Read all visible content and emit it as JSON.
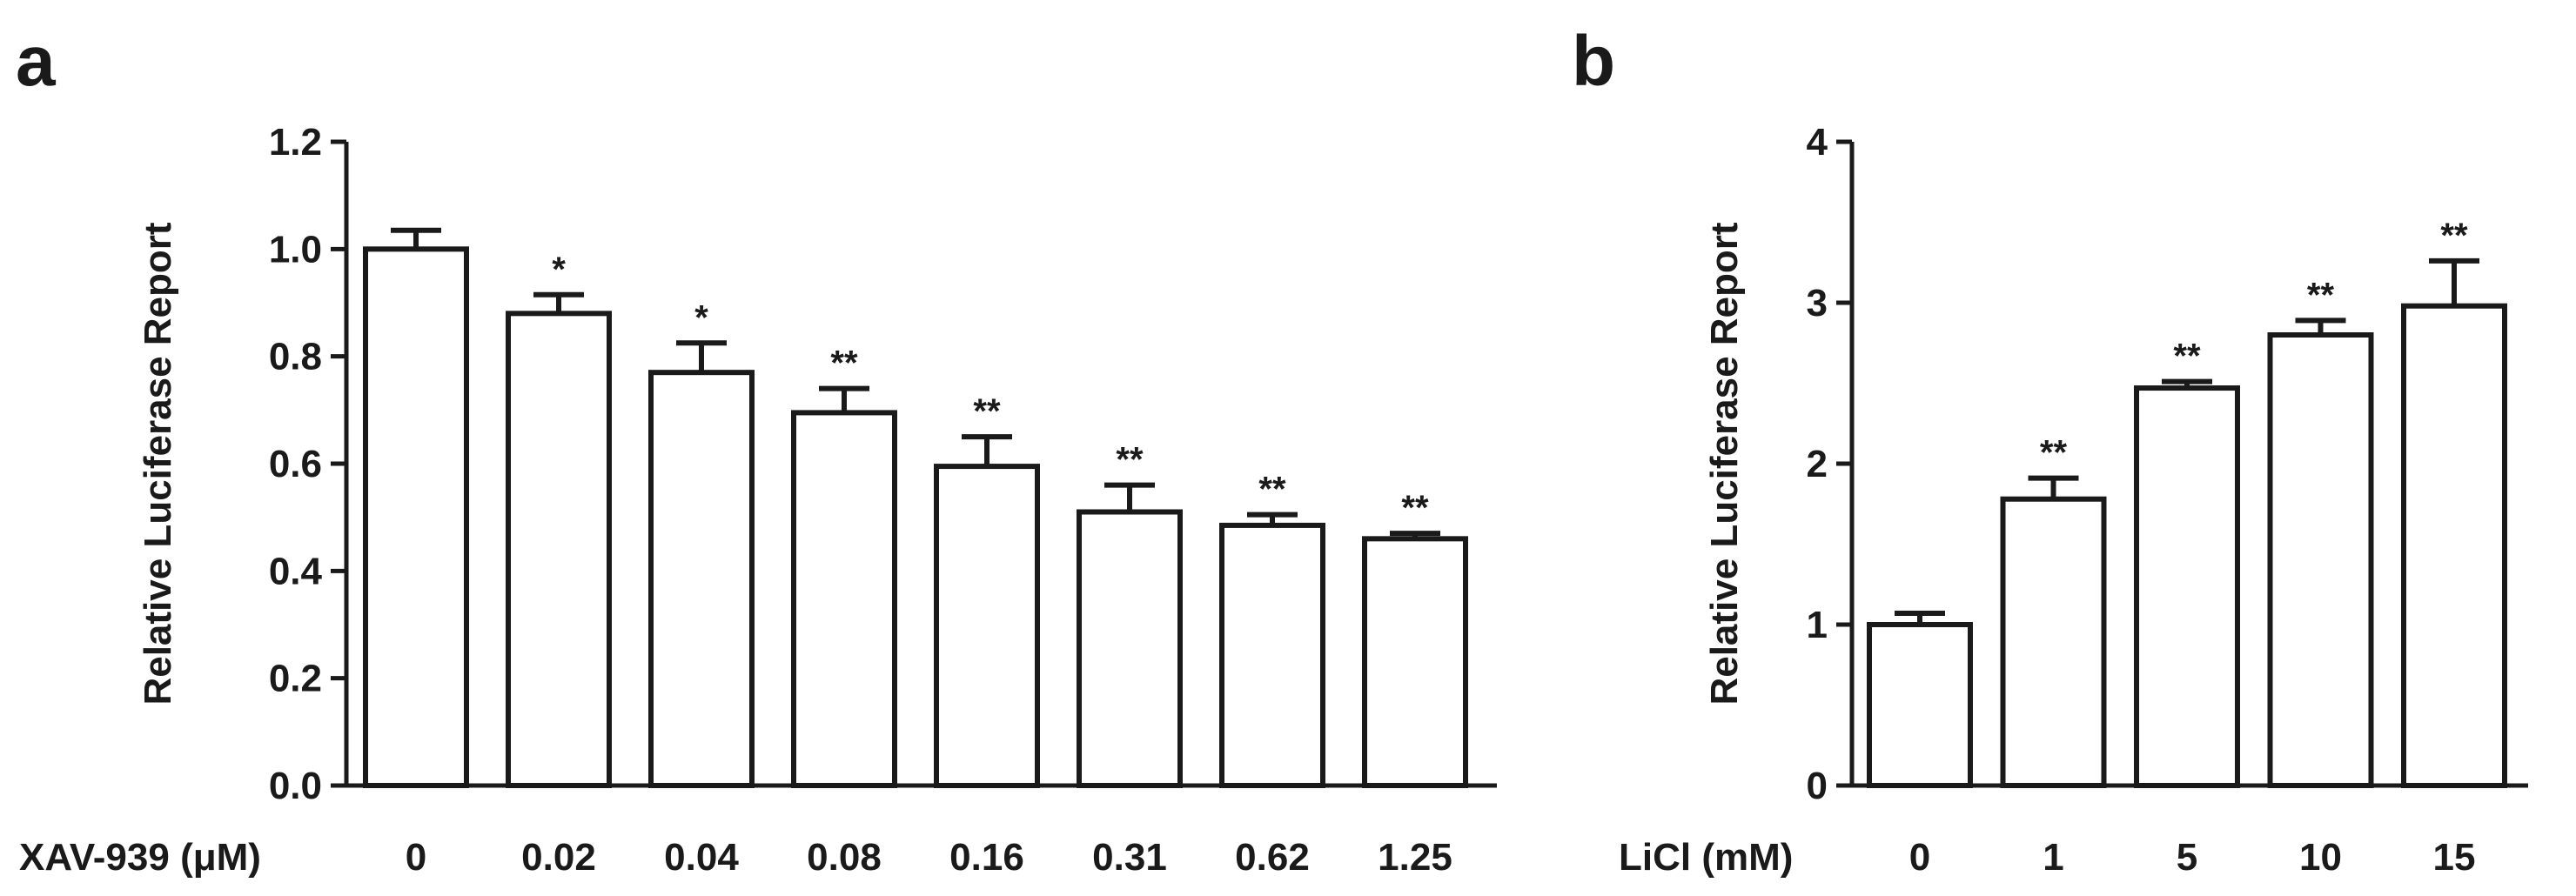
{
  "chart_data": [
    {
      "type": "bar",
      "panel_label": "a",
      "xlabel": "XAV-939 (μM)",
      "ylabel": "Relative Luciferase Report",
      "ylim": [
        0,
        1.2
      ],
      "yticks": [
        "0.0",
        "0.2",
        "0.4",
        "0.6",
        "0.8",
        "1.0",
        "1.2"
      ],
      "ytick_values": [
        0,
        0.2,
        0.4,
        0.6,
        0.8,
        1.0,
        1.2
      ],
      "categories": [
        "0",
        "0.02",
        "0.04",
        "0.08",
        "0.16",
        "0.31",
        "0.62",
        "1.25"
      ],
      "values": [
        1.0,
        0.88,
        0.77,
        0.695,
        0.595,
        0.51,
        0.485,
        0.46
      ],
      "errors": [
        0.035,
        0.035,
        0.055,
        0.045,
        0.055,
        0.05,
        0.02,
        0.01
      ],
      "significance": [
        "",
        "*",
        "*",
        "**",
        "**",
        "**",
        "**",
        "**"
      ]
    },
    {
      "type": "bar",
      "panel_label": "b",
      "xlabel": "LiCl (mM)",
      "ylabel": "Relative Luciferase Report",
      "ylim": [
        0,
        4
      ],
      "yticks": [
        "0",
        "1",
        "2",
        "3",
        "4"
      ],
      "ytick_values": [
        0,
        1,
        2,
        3,
        4
      ],
      "categories": [
        "0",
        "1",
        "5",
        "10",
        "15"
      ],
      "values": [
        1.0,
        1.78,
        2.47,
        2.8,
        2.98
      ],
      "errors": [
        0.07,
        0.13,
        0.04,
        0.09,
        0.28
      ],
      "significance": [
        "",
        "**",
        "**",
        "**",
        "**"
      ]
    }
  ]
}
